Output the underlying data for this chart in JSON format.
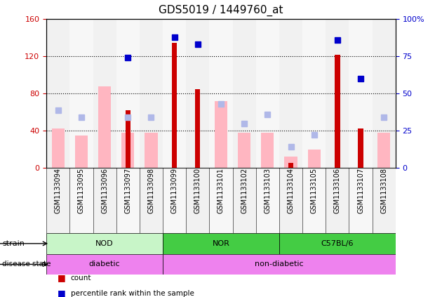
{
  "title": "GDS5019 / 1449760_at",
  "samples": [
    "GSM1133094",
    "GSM1133095",
    "GSM1133096",
    "GSM1133097",
    "GSM1133098",
    "GSM1133099",
    "GSM1133100",
    "GSM1133101",
    "GSM1133102",
    "GSM1133103",
    "GSM1133104",
    "GSM1133105",
    "GSM1133106",
    "GSM1133107",
    "GSM1133108"
  ],
  "count_values": [
    0,
    0,
    0,
    62,
    0,
    135,
    85,
    0,
    0,
    0,
    5,
    0,
    122,
    42,
    0
  ],
  "percentile_values": [
    0,
    0,
    0,
    74,
    0,
    88,
    83,
    0,
    0,
    0,
    0,
    0,
    86,
    60,
    0
  ],
  "value_absent": [
    42,
    35,
    88,
    38,
    38,
    0,
    0,
    72,
    38,
    38,
    12,
    20,
    0,
    0,
    38
  ],
  "rank_absent_pct": [
    39,
    34,
    0,
    34,
    34,
    0,
    0,
    43,
    30,
    36,
    14,
    22,
    0,
    0,
    34
  ],
  "ylim_left": [
    0,
    160
  ],
  "ylim_right": [
    0,
    100
  ],
  "yticks_left": [
    0,
    40,
    80,
    120,
    160
  ],
  "ytick_labels_left": [
    "0",
    "40",
    "80",
    "120",
    "160"
  ],
  "yticks_right": [
    0,
    25,
    50,
    75,
    100
  ],
  "ytick_labels_right": [
    "0",
    "25",
    "50",
    "75",
    "100%"
  ],
  "strain_groups": [
    {
      "label": "NOD",
      "start": 0,
      "end": 5,
      "color": "#c8f5c8"
    },
    {
      "label": "NOR",
      "start": 5,
      "end": 10,
      "color": "#44cc44"
    },
    {
      "label": "C57BL/6",
      "start": 10,
      "end": 15,
      "color": "#44cc44"
    }
  ],
  "disease_groups": [
    {
      "label": "diabetic",
      "start": 0,
      "end": 5,
      "color": "#ee82ee"
    },
    {
      "label": "non-diabetic",
      "start": 5,
      "end": 15,
      "color": "#ee82ee"
    }
  ],
  "count_color": "#cc0000",
  "percentile_color": "#0000cc",
  "value_absent_color": "#ffb6c1",
  "rank_absent_color": "#b0b8e8",
  "left_label_color": "#cc0000",
  "right_label_color": "#0000cc",
  "bg_color": "#ffffff"
}
